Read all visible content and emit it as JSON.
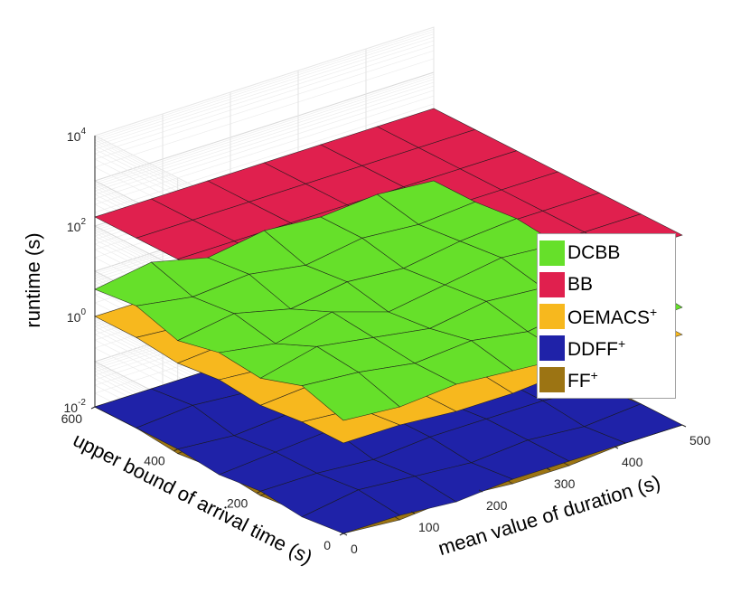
{
  "chart_data": {
    "type": "surface3d",
    "zscale": "log",
    "xlabel": "mean value of duration (s)",
    "ylabel": "upper bound of arrival time (s)",
    "zlabel": "runtime (s)",
    "xlim": [
      0,
      500
    ],
    "ylim": [
      0,
      600
    ],
    "zlim_exp": [
      -2,
      4
    ],
    "x_ticks": [
      "0",
      "100",
      "200",
      "300",
      "400",
      "500"
    ],
    "y_ticks": [
      "0",
      "200",
      "400",
      "600"
    ],
    "z_ticks": [
      {
        "base": "10",
        "exp": "-2",
        "value": -2
      },
      {
        "base": "10",
        "exp": "0",
        "value": 0
      },
      {
        "base": "10",
        "exp": "2",
        "value": 2
      },
      {
        "base": "10",
        "exp": "4",
        "value": 4
      }
    ],
    "grid": true,
    "legend_position": "right",
    "series": [
      {
        "name": "DCBB",
        "sup": "",
        "color": "#66e02a",
        "z": [
          [
            0.5,
            0.4,
            0.5,
            0.4,
            0.3,
            0.5,
            0.6
          ],
          [
            0.8,
            0.7,
            0.5,
            0.6,
            0.4,
            0.6,
            0.7
          ],
          [
            0.5,
            0.8,
            0.6,
            0.4,
            0.6,
            0.5,
            0.6
          ],
          [
            0.6,
            0.4,
            0.7,
            0.3,
            0.5,
            0.7,
            0.6
          ],
          [
            0.4,
            0.6,
            0.3,
            0.5,
            0.4,
            0.6,
            0.7
          ],
          [
            0.7,
            0.5,
            0.6,
            0.4,
            0.6,
            0.5,
            0.6
          ],
          [
            0.6,
            0.8,
            0.5,
            0.7,
            0.6,
            0.7,
            0.6
          ]
        ]
      },
      {
        "name": "BB",
        "sup": "",
        "color": "#e0204e",
        "z": [
          [
            2.2,
            2.2,
            2.2,
            2.2,
            2.2,
            2.2,
            2.2
          ],
          [
            2.2,
            2.2,
            2.2,
            2.2,
            2.2,
            2.2,
            2.2
          ],
          [
            2.2,
            2.2,
            2.2,
            2.2,
            2.2,
            2.2,
            2.2
          ],
          [
            2.2,
            2.2,
            2.2,
            2.2,
            2.2,
            2.2,
            2.2
          ],
          [
            2.2,
            2.2,
            2.2,
            2.2,
            2.2,
            2.2,
            2.2
          ],
          [
            2.2,
            2.2,
            2.2,
            2.2,
            2.2,
            2.2,
            2.2
          ],
          [
            2.2,
            2.2,
            2.2,
            2.2,
            2.2,
            2.2,
            2.2
          ]
        ]
      },
      {
        "name": "OEMACS",
        "sup": "+",
        "color": "#f7b81e",
        "z": [
          [
            0.0,
            0.0,
            -0.1,
            -0.1,
            0.0,
            0.0,
            0.0
          ],
          [
            0.0,
            -0.1,
            -0.1,
            0.0,
            -0.1,
            0.0,
            0.0
          ],
          [
            -0.1,
            0.0,
            -0.1,
            -0.1,
            0.0,
            0.0,
            0.0
          ],
          [
            0.0,
            -0.1,
            0.0,
            -0.1,
            -0.1,
            0.0,
            0.0
          ],
          [
            -0.1,
            0.0,
            -0.1,
            0.0,
            -0.1,
            0.0,
            0.0
          ],
          [
            0.0,
            -0.1,
            0.0,
            -0.1,
            0.0,
            0.0,
            0.0
          ],
          [
            0.0,
            0.0,
            -0.1,
            0.0,
            0.0,
            0.0,
            0.0
          ]
        ]
      },
      {
        "name": "DDFF",
        "sup": "+",
        "color": "#1f22a8",
        "z": [
          [
            -2.0,
            -2.0,
            -2.1,
            -2.0,
            -2.0,
            -2.0,
            -2.0
          ],
          [
            -2.1,
            -1.9,
            -2.0,
            -2.1,
            -2.0,
            -2.1,
            -2.0
          ],
          [
            -2.0,
            -2.0,
            -2.1,
            -2.0,
            -2.0,
            -2.0,
            -2.1
          ],
          [
            -2.1,
            -2.0,
            -1.9,
            -2.0,
            -2.1,
            -2.0,
            -2.0
          ],
          [
            -2.0,
            -2.1,
            -2.0,
            -2.0,
            -2.0,
            -2.1,
            -2.0
          ],
          [
            -2.0,
            -1.9,
            -2.0,
            -2.1,
            -2.0,
            -2.0,
            -2.0
          ],
          [
            -2.0,
            -2.0,
            -2.0,
            -2.0,
            -2.0,
            -2.0,
            -2.0
          ]
        ]
      },
      {
        "name": "FF",
        "sup": "+",
        "color": "#9c7413",
        "z": [
          [
            -2.0,
            -2.1,
            -2.0,
            -2.1,
            -2.1,
            -2.0,
            -2.0
          ],
          [
            -2.0,
            -2.0,
            -2.1,
            -2.0,
            -2.1,
            -2.0,
            -2.0
          ],
          [
            -2.1,
            -2.0,
            -2.0,
            -2.1,
            -2.0,
            -2.1,
            -2.0
          ],
          [
            -2.0,
            -2.1,
            -2.0,
            -2.0,
            -2.1,
            -2.0,
            -2.0
          ],
          [
            -2.1,
            -2.0,
            -2.1,
            -2.0,
            -2.0,
            -2.1,
            -2.0
          ],
          [
            -2.0,
            -2.0,
            -2.1,
            -2.0,
            -2.1,
            -2.0,
            -2.0
          ],
          [
            -2.0,
            -2.0,
            -2.0,
            -2.0,
            -2.0,
            -2.0,
            -2.0
          ]
        ]
      }
    ]
  }
}
